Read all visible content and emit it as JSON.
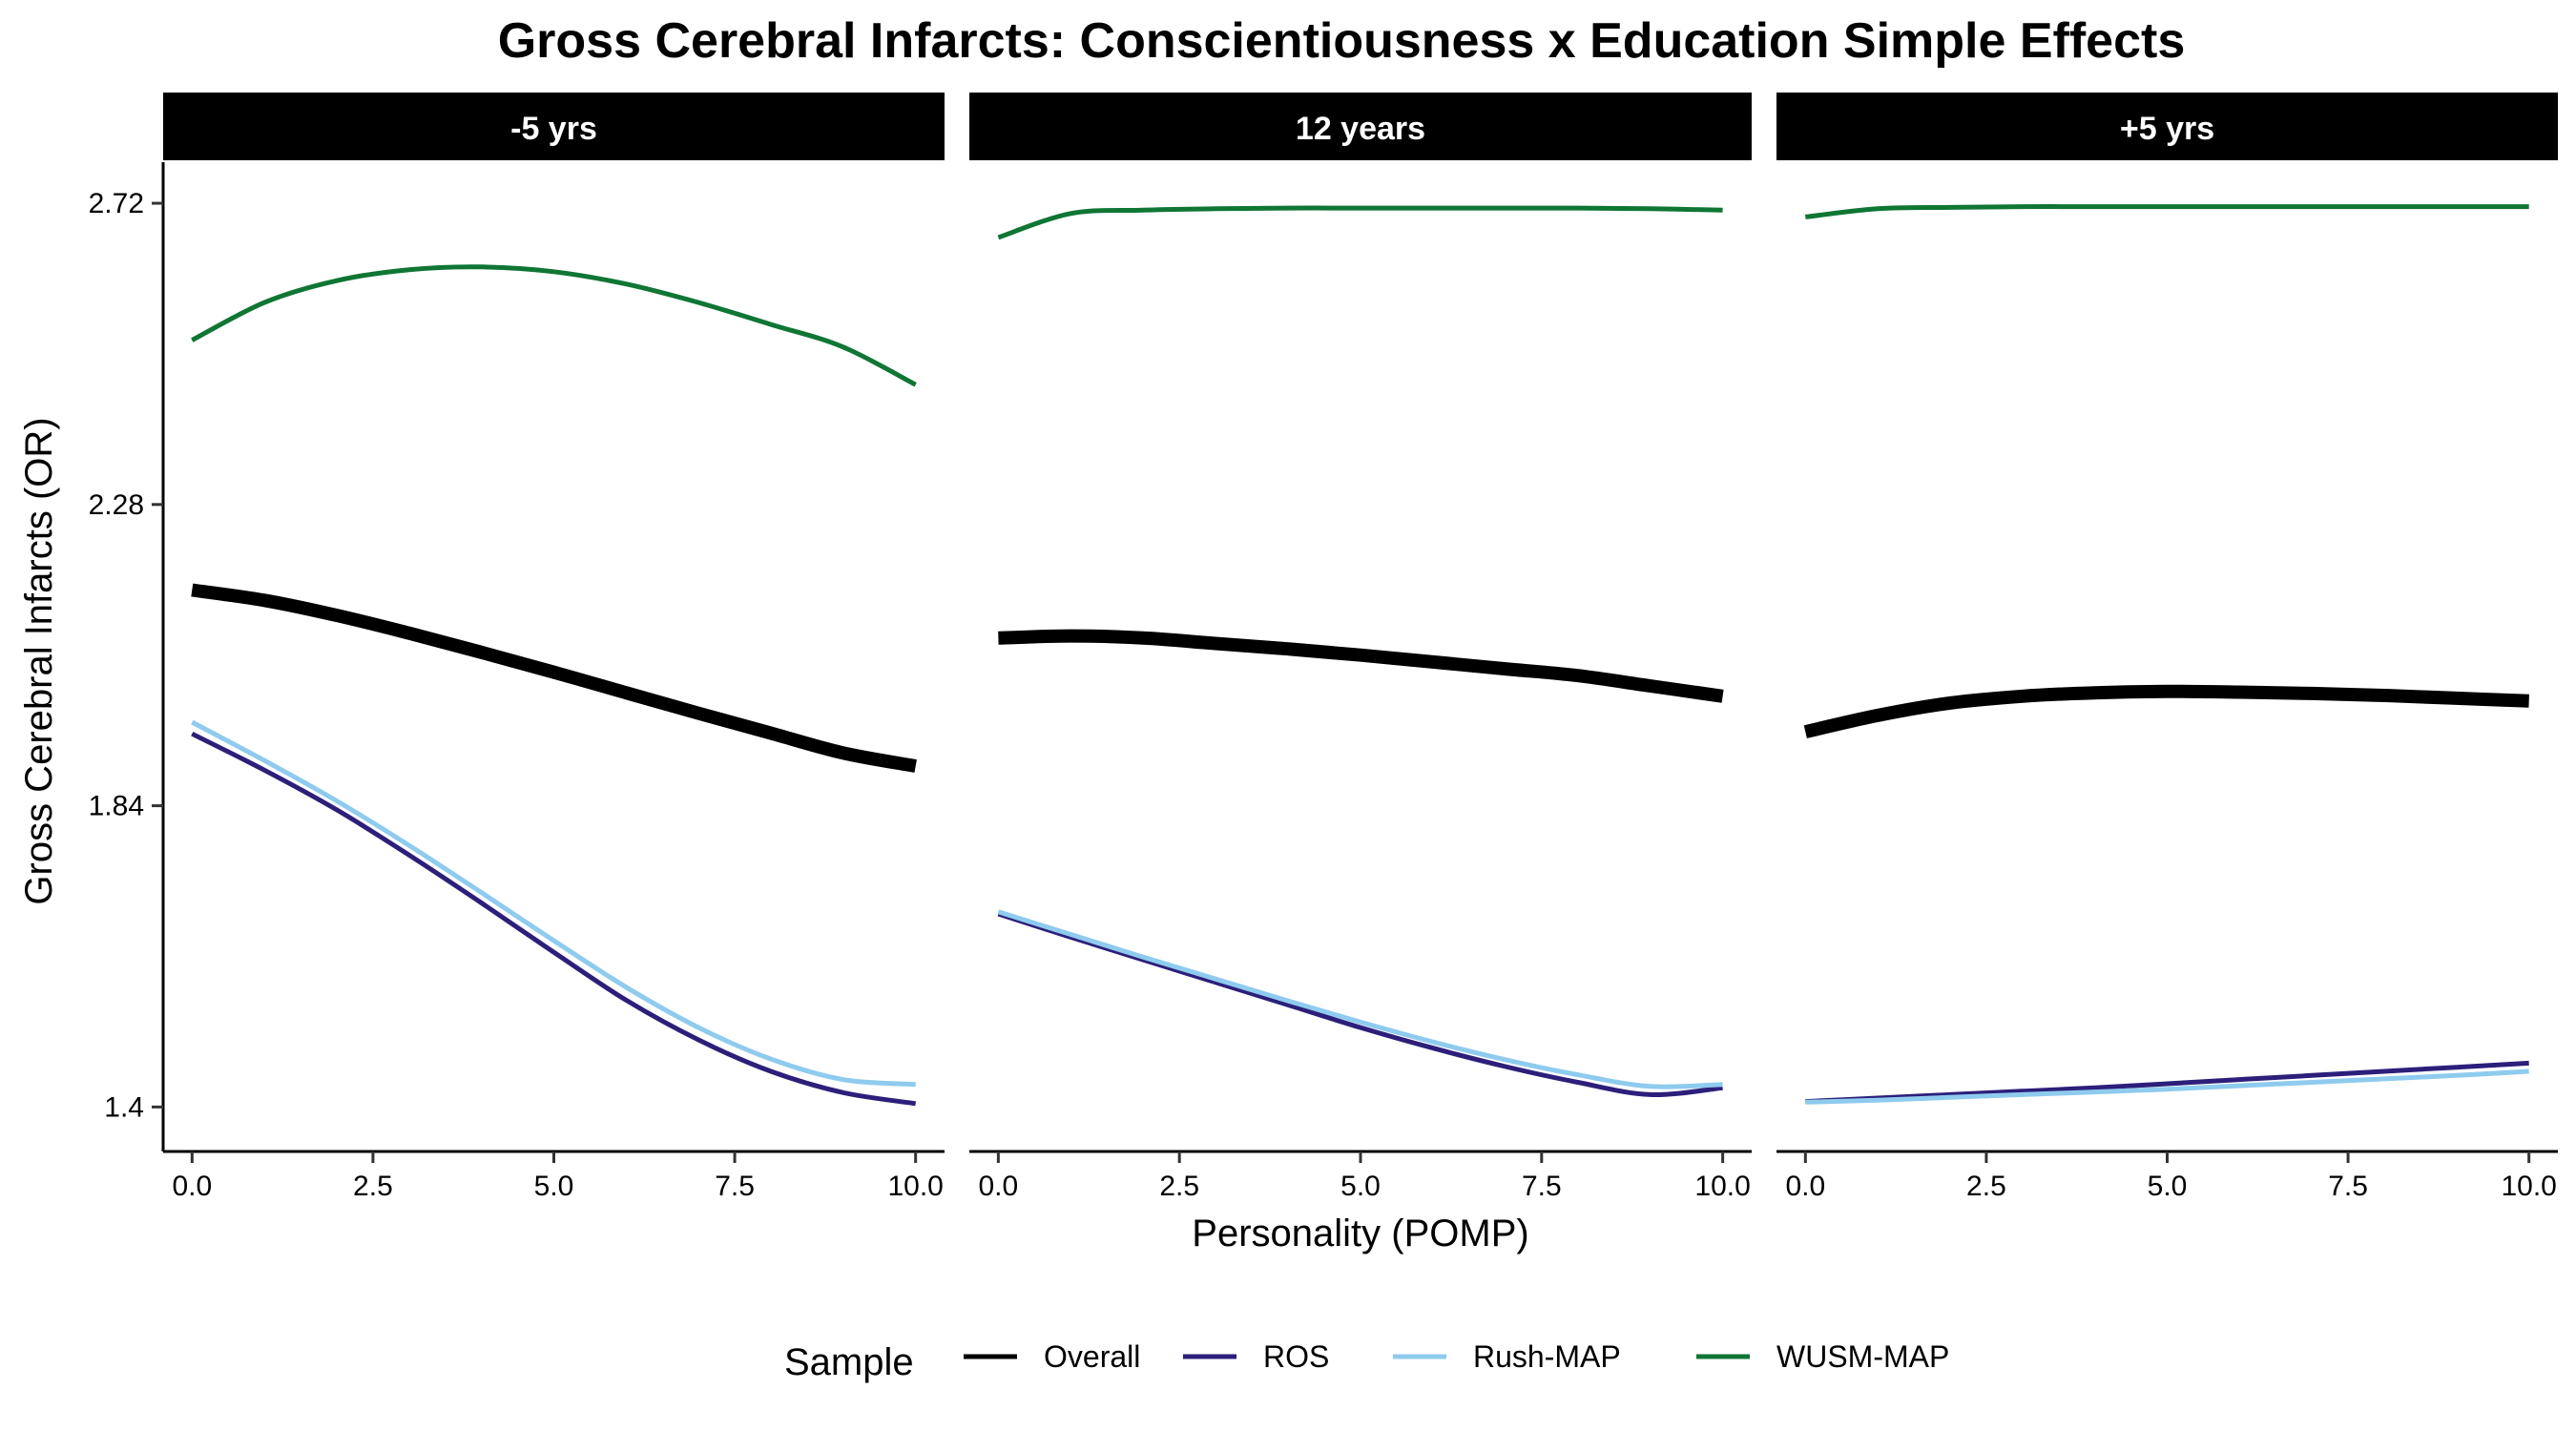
{
  "chart_data": {
    "type": "line",
    "title": "Gross Cerebral Infarcts: Conscientiousness x Education Simple Effects",
    "xlabel": "Personality (POMP)",
    "ylabel": "Gross Cerebral Infarcts (OR)",
    "xlim": [
      -0.4,
      10.4
    ],
    "ylim": [
      1.335,
      2.78
    ],
    "x_ticks": [
      0.0,
      2.5,
      5.0,
      7.5,
      10.0
    ],
    "x_tick_labels": [
      "0.0",
      "2.5",
      "5.0",
      "7.5",
      "10.0"
    ],
    "y_ticks": [
      1.4,
      1.84,
      2.28,
      2.72
    ],
    "y_tick_labels": [
      "1.4",
      "1.84",
      "2.28",
      "2.72"
    ],
    "grid": false,
    "legend_title": "Sample",
    "legend_position": "bottom",
    "series_styles": [
      {
        "name": "Overall",
        "color": "#000000",
        "width": 14
      },
      {
        "name": "ROS",
        "color": "#2c1f7a",
        "width": 5
      },
      {
        "name": "Rush-MAP",
        "color": "#8ecbee",
        "width": 5
      },
      {
        "name": "WUSM-MAP",
        "color": "#0f7634",
        "width": 5
      }
    ],
    "facets": [
      {
        "label": "-5 yrs",
        "x": [
          0,
          1,
          2,
          3,
          4,
          5,
          6,
          7,
          8,
          9,
          10
        ],
        "series": [
          {
            "name": "Overall",
            "values": [
              2.155,
              2.14,
              2.118,
              2.092,
              2.064,
              2.035,
              2.005,
              1.975,
              1.946,
              1.917,
              1.898
            ]
          },
          {
            "name": "ROS",
            "values": [
              1.945,
              1.892,
              1.834,
              1.768,
              1.698,
              1.626,
              1.556,
              1.498,
              1.452,
              1.421,
              1.405
            ]
          },
          {
            "name": "Rush-MAP",
            "values": [
              1.962,
              1.906,
              1.847,
              1.782,
              1.713,
              1.643,
              1.575,
              1.516,
              1.47,
              1.44,
              1.433
            ]
          },
          {
            "name": "WUSM-MAP",
            "values": [
              2.52,
              2.575,
              2.607,
              2.623,
              2.627,
              2.62,
              2.602,
              2.575,
              2.543,
              2.51,
              2.455
            ]
          }
        ]
      },
      {
        "label": "12 years",
        "x": [
          0,
          1,
          2,
          3,
          4,
          5,
          6,
          7,
          8,
          9,
          10
        ],
        "series": [
          {
            "name": "Overall",
            "values": [
              2.085,
              2.088,
              2.085,
              2.077,
              2.069,
              2.06,
              2.05,
              2.04,
              2.03,
              2.015,
              2.0
            ]
          },
          {
            "name": "ROS",
            "values": [
              1.682,
              1.648,
              1.615,
              1.582,
              1.549,
              1.516,
              1.486,
              1.459,
              1.436,
              1.418,
              1.428
            ]
          },
          {
            "name": "Rush-MAP",
            "values": [
              1.685,
              1.652,
              1.619,
              1.587,
              1.555,
              1.524,
              1.495,
              1.469,
              1.447,
              1.43,
              1.433
            ]
          },
          {
            "name": "WUSM-MAP",
            "values": [
              2.67,
              2.705,
              2.71,
              2.712,
              2.713,
              2.713,
              2.713,
              2.713,
              2.713,
              2.712,
              2.71
            ]
          }
        ]
      },
      {
        "label": "+5 yrs",
        "x": [
          0,
          1,
          2,
          3,
          4,
          5,
          6,
          7,
          8,
          9,
          10
        ],
        "series": [
          {
            "name": "Overall",
            "values": [
              1.948,
              1.972,
              1.99,
              2.0,
              2.005,
              2.007,
              2.006,
              2.004,
              2.001,
              1.997,
              1.993
            ]
          },
          {
            "name": "ROS",
            "values": [
              1.408,
              1.413,
              1.418,
              1.423,
              1.428,
              1.434,
              1.44,
              1.446,
              1.452,
              1.458,
              1.464
            ]
          },
          {
            "name": "Rush-MAP",
            "values": [
              1.407,
              1.41,
              1.414,
              1.418,
              1.422,
              1.426,
              1.431,
              1.436,
              1.441,
              1.446,
              1.452
            ]
          },
          {
            "name": "WUSM-MAP",
            "values": [
              2.7,
              2.712,
              2.714,
              2.715,
              2.715,
              2.715,
              2.715,
              2.715,
              2.715,
              2.715,
              2.715
            ]
          }
        ]
      }
    ]
  }
}
